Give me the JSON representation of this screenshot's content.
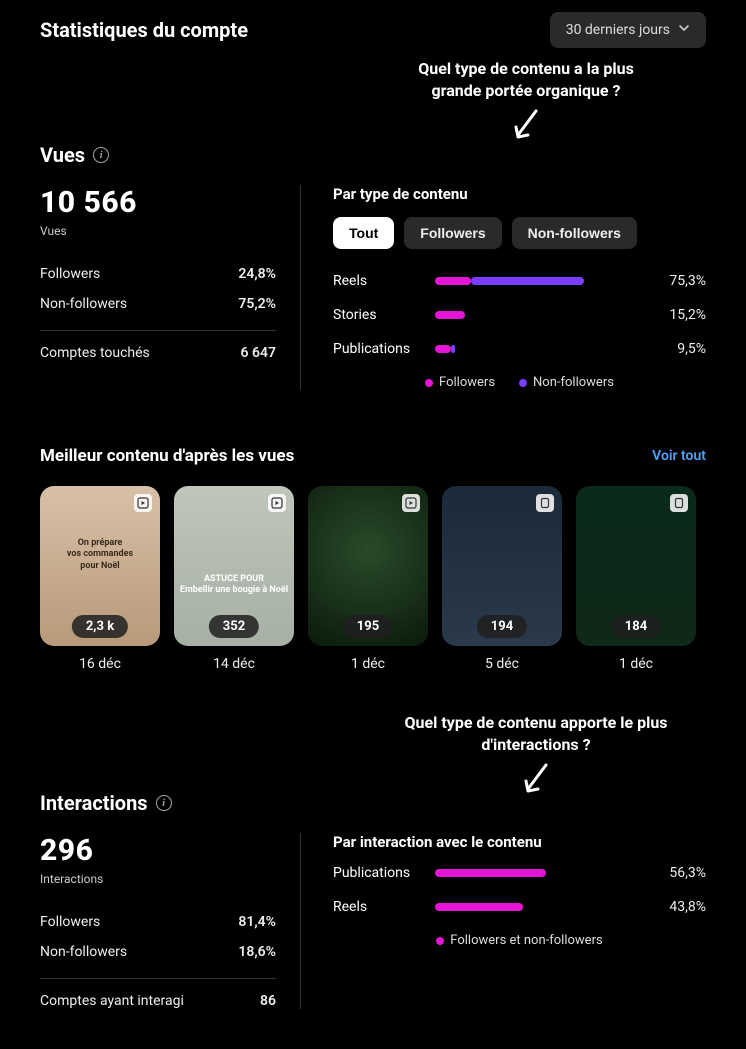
{
  "header": {
    "title": "Statistiques du compte",
    "period_label": "30 derniers jours"
  },
  "annot1": {
    "line1": "Quel type de contenu a la plus",
    "line2": "grande portée organique ?"
  },
  "vues": {
    "section_label": "Vues",
    "big_number": "10 566",
    "big_label": "Vues",
    "followers_label": "Followers",
    "followers_pct": "24,8%",
    "nonfollowers_label": "Non-followers",
    "nonfollowers_pct": "75,2%",
    "touched_label": "Comptes touchés",
    "touched_value": "6 647"
  },
  "content_type": {
    "heading": "Par type de contenu",
    "tabs": {
      "all": "Tout",
      "followers": "Followers",
      "nonfollowers": "Non-followers"
    },
    "rows": [
      {
        "label": "Reels",
        "pct_text": "75,3%",
        "followers_pct": 18,
        "nonfollowers_pct": 57,
        "total_width": 75
      },
      {
        "label": "Stories",
        "pct_text": "15,2%",
        "followers_pct": 15,
        "nonfollowers_pct": 0,
        "total_width": 15
      },
      {
        "label": "Publications",
        "pct_text": "9,5%",
        "followers_pct": 8,
        "nonfollowers_pct": 2,
        "total_width": 10
      }
    ],
    "legend_followers": "Followers",
    "legend_nonfollowers": "Non-followers",
    "colors": {
      "followers": "#e515d5",
      "nonfollowers": "#7a3cff"
    }
  },
  "best": {
    "title": "Meilleur contenu d'après les vues",
    "see_all": "Voir tout",
    "items": [
      {
        "count": "2,3 k",
        "date": "16 déc",
        "caption_lines": [
          "On prépare",
          "vos commandes",
          "pour Noël"
        ],
        "type": "reel"
      },
      {
        "count": "352",
        "date": "14 déc",
        "caption_lines": [
          "ASTUCE POUR",
          "Embellir une bougie à Noël"
        ],
        "type": "reel"
      },
      {
        "count": "195",
        "date": "1 déc",
        "caption_lines": [],
        "type": "reel"
      },
      {
        "count": "194",
        "date": "5 déc",
        "caption_lines": [],
        "type": "story"
      },
      {
        "count": "184",
        "date": "1 déc",
        "caption_lines": [],
        "type": "story"
      }
    ]
  },
  "annot2": {
    "line1": "Quel type de contenu apporte le plus",
    "line2": "d'interactions ?"
  },
  "interactions": {
    "section_label": "Interactions",
    "big_number": "296",
    "big_label": "Interactions",
    "followers_label": "Followers",
    "followers_pct": "81,4%",
    "nonfollowers_label": "Non-followers",
    "nonfollowers_pct": "18,6%",
    "engaged_label": "Comptes ayant interagi",
    "engaged_value": "86"
  },
  "interaction_type": {
    "heading": "Par interaction avec le contenu",
    "rows": [
      {
        "label": "Publications",
        "pct_text": "56,3%",
        "width": 56
      },
      {
        "label": "Reels",
        "pct_text": "43,8%",
        "width": 44
      }
    ],
    "legend": "Followers et non-followers",
    "bar_color": "#e515d5"
  }
}
